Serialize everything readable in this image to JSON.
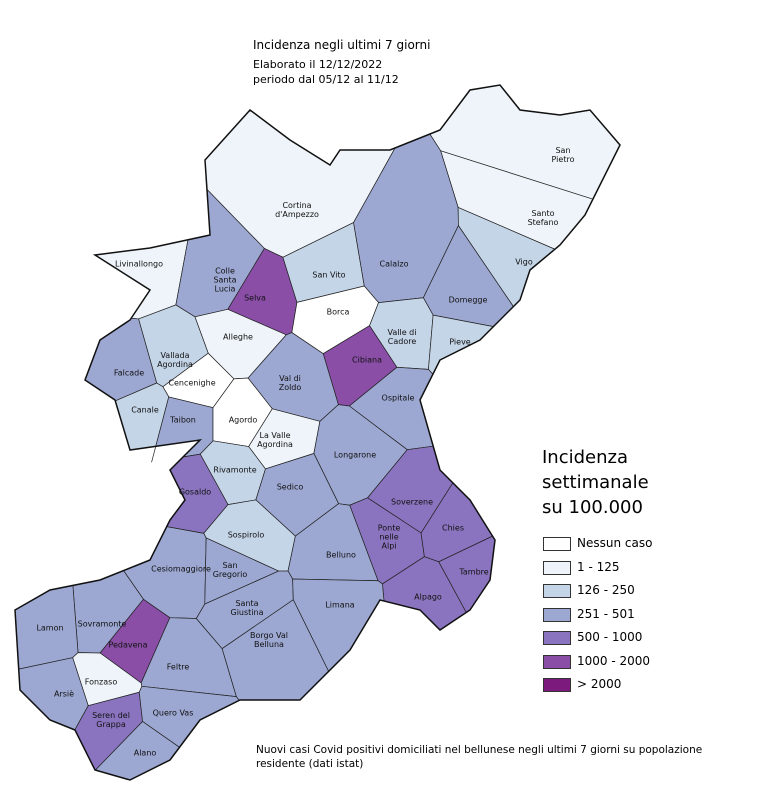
{
  "header": {
    "title": "Incidenza negli ultimi 7 giorni",
    "line2": "Elaborato il  12/12/2022",
    "line3": "periodo dal 05/12 al 11/12"
  },
  "legend": {
    "title": "Incidenza settimanale su 100.000",
    "classes": [
      {
        "label": "Nessun caso",
        "color": "#ffffff"
      },
      {
        "label": "1 - 125",
        "color": "#eef4f9"
      },
      {
        "label": "126 - 250",
        "color": "#c5d5e8"
      },
      {
        "label": "251 - 501",
        "color": "#9ca8d2"
      },
      {
        "label": "500 - 1000",
        "color": "#8b74bf"
      },
      {
        "label": "1000 - 2000",
        "color": "#8a4ea7"
      },
      {
        "label": "> 2000",
        "color": "#7c1a7d"
      }
    ]
  },
  "municipalities": [
    {
      "name": "San\nPietro",
      "class": 1
    },
    {
      "name": "Santo\nStefano",
      "class": 1
    },
    {
      "name": "Cortina\nd'Ampezzo",
      "class": 1
    },
    {
      "name": "Livinallongo",
      "class": 1
    },
    {
      "name": "Colle\nSanta\nLucia",
      "class": 3
    },
    {
      "name": "Selva",
      "class": 5
    },
    {
      "name": "San Vito",
      "class": 2
    },
    {
      "name": "Calalzo",
      "class": 3
    },
    {
      "name": "Vigo",
      "class": 2
    },
    {
      "name": "Domegge",
      "class": 3
    },
    {
      "name": "Borca",
      "class": 0
    },
    {
      "name": "Alleghe",
      "class": 1
    },
    {
      "name": "Valle di\nCadore",
      "class": 2
    },
    {
      "name": "Pieve",
      "class": 2
    },
    {
      "name": "Cibiana",
      "class": 5
    },
    {
      "name": "Vallada\nAgordina",
      "class": 2
    },
    {
      "name": "Falcade",
      "class": 3
    },
    {
      "name": "Cencenighe",
      "class": 0
    },
    {
      "name": "Val di\nZoldo",
      "class": 3
    },
    {
      "name": "Ospitale",
      "class": 3
    },
    {
      "name": "Canale",
      "class": 2
    },
    {
      "name": "Taibon",
      "class": 3
    },
    {
      "name": "Agordo",
      "class": 0
    },
    {
      "name": "La Valle\nAgordina",
      "class": 1
    },
    {
      "name": "Longarone",
      "class": 3
    },
    {
      "name": "Rivamonte",
      "class": 2
    },
    {
      "name": "Gosaldo",
      "class": 4
    },
    {
      "name": "Sedico",
      "class": 3
    },
    {
      "name": "Soverzene",
      "class": 4
    },
    {
      "name": "Ponte\nnelle\nAlpi",
      "class": 4
    },
    {
      "name": "Chies",
      "class": 4
    },
    {
      "name": "Sospirolo",
      "class": 2
    },
    {
      "name": "Belluno",
      "class": 3
    },
    {
      "name": "Tambre",
      "class": 4
    },
    {
      "name": "Cesiomaggiore",
      "class": 3
    },
    {
      "name": "San\nGregorio",
      "class": 3
    },
    {
      "name": "Santa\nGiustina",
      "class": 3
    },
    {
      "name": "Alpago",
      "class": 4
    },
    {
      "name": "Limana",
      "class": 3
    },
    {
      "name": "Sovramonte",
      "class": 3
    },
    {
      "name": "Lamon",
      "class": 3
    },
    {
      "name": "Pedavena",
      "class": 5
    },
    {
      "name": "Borgo Val\nBelluna",
      "class": 3
    },
    {
      "name": "Feltre",
      "class": 3
    },
    {
      "name": "Fonzaso",
      "class": 1
    },
    {
      "name": "Arsiè",
      "class": 3
    },
    {
      "name": "Seren del\nGrappa",
      "class": 4
    },
    {
      "name": "Quero Vas",
      "class": 3
    },
    {
      "name": "Alano",
      "class": 3
    }
  ],
  "footnote": "Nuovi casi Covid positivi domiciliati nel bellunese negli ultimi 7 giorni su popolazione residente (dati istat)"
}
